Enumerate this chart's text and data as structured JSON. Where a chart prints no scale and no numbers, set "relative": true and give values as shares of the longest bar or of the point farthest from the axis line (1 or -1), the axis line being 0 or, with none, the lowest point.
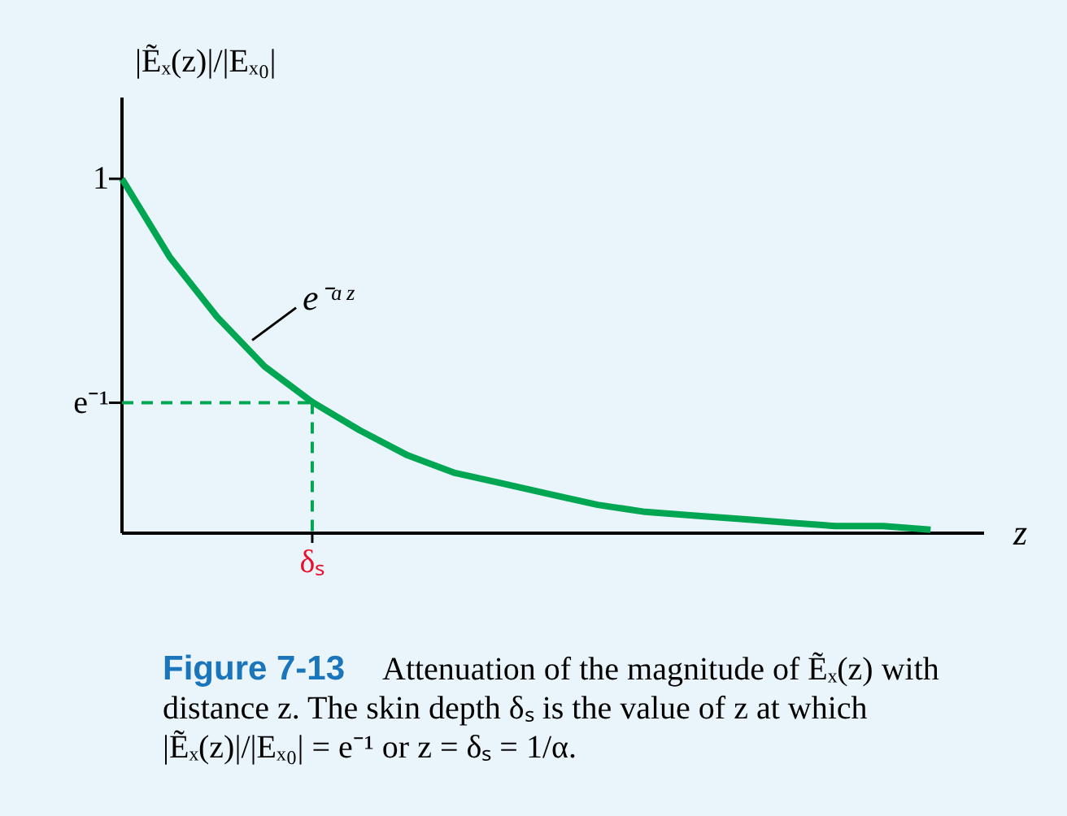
{
  "chart_data": {
    "type": "line",
    "xlabel": "z",
    "ylabel": "|Ẽₓ(z)|/|Eₓ₀|",
    "categories": [
      null,
      null,
      null,
      null,
      null,
      null,
      null,
      null,
      null,
      null,
      null,
      null,
      null,
      null,
      null,
      null,
      null,
      null
    ],
    "relative": true,
    "series": [
      {
        "color": "#00a651",
        "line_style": "solid",
        "values": [
          1,
          0.78,
          0.61,
          0.47,
          0.37,
          0.29,
          0.22,
          0.17,
          0.14,
          0.11,
          0.08,
          0.06,
          0.05,
          0.04,
          0.03,
          0.02,
          0.02,
          0.01
        ]
      },
      {
        "color": "#00a651",
        "line_style": "dashed",
        "values": [
          0.368,
          0.368,
          0.368,
          0.368,
          0.368,
          null,
          null,
          null,
          null,
          null,
          null,
          null,
          null,
          null,
          null,
          null,
          null,
          null
        ]
      }
    ],
    "annotations": [
      "1",
      "e⁻¹",
      "e⁻ᵅᶻ",
      "δₛ",
      "Figure 7-13",
      "Attenuation of the magnitude of Ẽₓ(z) with distance z. The skin depth δₛ is the value of z at which |Ẽₓ(z)|/|Eₓ₀| = e⁻¹ or z = δₛ = 1/α."
    ]
  }
}
